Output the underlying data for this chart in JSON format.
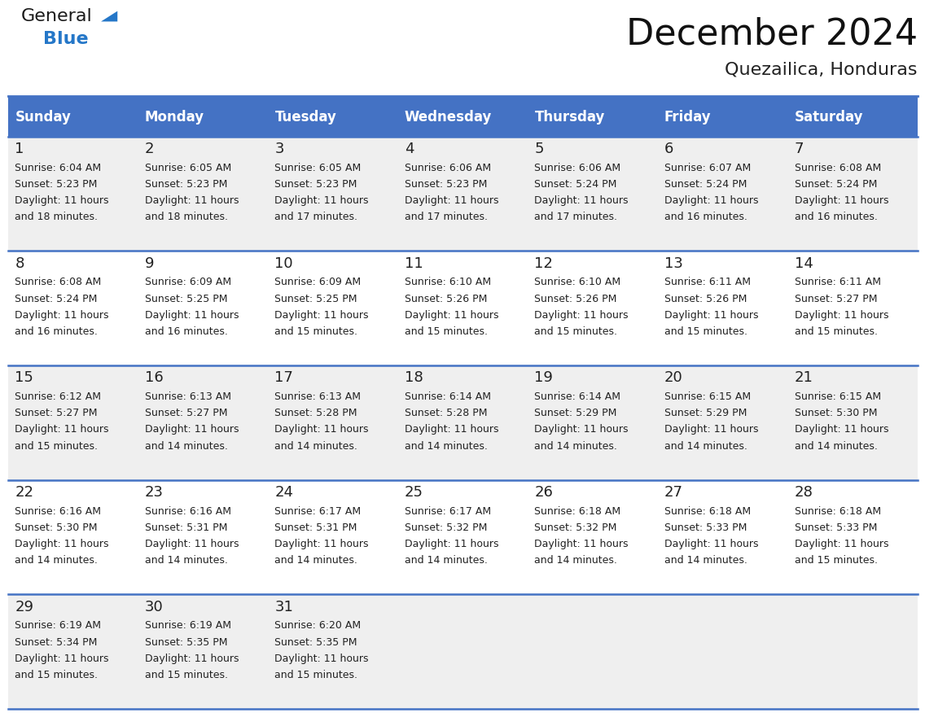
{
  "title": "December 2024",
  "subtitle": "Quezailica, Honduras",
  "header_bg_color": "#4472C4",
  "header_text_color": "#FFFFFF",
  "cell_bg_light": "#EFEFEF",
  "cell_bg_white": "#FFFFFF",
  "border_color": "#4472C4",
  "text_color": "#222222",
  "days_of_week": [
    "Sunday",
    "Monday",
    "Tuesday",
    "Wednesday",
    "Thursday",
    "Friday",
    "Saturday"
  ],
  "weeks": [
    [
      {
        "day": "1",
        "sunrise": "6:04 AM",
        "sunset": "5:23 PM",
        "daylight_line1": "Daylight: 11 hours",
        "daylight_line2": "and 18 minutes."
      },
      {
        "day": "2",
        "sunrise": "6:05 AM",
        "sunset": "5:23 PM",
        "daylight_line1": "Daylight: 11 hours",
        "daylight_line2": "and 18 minutes."
      },
      {
        "day": "3",
        "sunrise": "6:05 AM",
        "sunset": "5:23 PM",
        "daylight_line1": "Daylight: 11 hours",
        "daylight_line2": "and 17 minutes."
      },
      {
        "day": "4",
        "sunrise": "6:06 AM",
        "sunset": "5:23 PM",
        "daylight_line1": "Daylight: 11 hours",
        "daylight_line2": "and 17 minutes."
      },
      {
        "day": "5",
        "sunrise": "6:06 AM",
        "sunset": "5:24 PM",
        "daylight_line1": "Daylight: 11 hours",
        "daylight_line2": "and 17 minutes."
      },
      {
        "day": "6",
        "sunrise": "6:07 AM",
        "sunset": "5:24 PM",
        "daylight_line1": "Daylight: 11 hours",
        "daylight_line2": "and 16 minutes."
      },
      {
        "day": "7",
        "sunrise": "6:08 AM",
        "sunset": "5:24 PM",
        "daylight_line1": "Daylight: 11 hours",
        "daylight_line2": "and 16 minutes."
      }
    ],
    [
      {
        "day": "8",
        "sunrise": "6:08 AM",
        "sunset": "5:24 PM",
        "daylight_line1": "Daylight: 11 hours",
        "daylight_line2": "and 16 minutes."
      },
      {
        "day": "9",
        "sunrise": "6:09 AM",
        "sunset": "5:25 PM",
        "daylight_line1": "Daylight: 11 hours",
        "daylight_line2": "and 16 minutes."
      },
      {
        "day": "10",
        "sunrise": "6:09 AM",
        "sunset": "5:25 PM",
        "daylight_line1": "Daylight: 11 hours",
        "daylight_line2": "and 15 minutes."
      },
      {
        "day": "11",
        "sunrise": "6:10 AM",
        "sunset": "5:26 PM",
        "daylight_line1": "Daylight: 11 hours",
        "daylight_line2": "and 15 minutes."
      },
      {
        "day": "12",
        "sunrise": "6:10 AM",
        "sunset": "5:26 PM",
        "daylight_line1": "Daylight: 11 hours",
        "daylight_line2": "and 15 minutes."
      },
      {
        "day": "13",
        "sunrise": "6:11 AM",
        "sunset": "5:26 PM",
        "daylight_line1": "Daylight: 11 hours",
        "daylight_line2": "and 15 minutes."
      },
      {
        "day": "14",
        "sunrise": "6:11 AM",
        "sunset": "5:27 PM",
        "daylight_line1": "Daylight: 11 hours",
        "daylight_line2": "and 15 minutes."
      }
    ],
    [
      {
        "day": "15",
        "sunrise": "6:12 AM",
        "sunset": "5:27 PM",
        "daylight_line1": "Daylight: 11 hours",
        "daylight_line2": "and 15 minutes."
      },
      {
        "day": "16",
        "sunrise": "6:13 AM",
        "sunset": "5:27 PM",
        "daylight_line1": "Daylight: 11 hours",
        "daylight_line2": "and 14 minutes."
      },
      {
        "day": "17",
        "sunrise": "6:13 AM",
        "sunset": "5:28 PM",
        "daylight_line1": "Daylight: 11 hours",
        "daylight_line2": "and 14 minutes."
      },
      {
        "day": "18",
        "sunrise": "6:14 AM",
        "sunset": "5:28 PM",
        "daylight_line1": "Daylight: 11 hours",
        "daylight_line2": "and 14 minutes."
      },
      {
        "day": "19",
        "sunrise": "6:14 AM",
        "sunset": "5:29 PM",
        "daylight_line1": "Daylight: 11 hours",
        "daylight_line2": "and 14 minutes."
      },
      {
        "day": "20",
        "sunrise": "6:15 AM",
        "sunset": "5:29 PM",
        "daylight_line1": "Daylight: 11 hours",
        "daylight_line2": "and 14 minutes."
      },
      {
        "day": "21",
        "sunrise": "6:15 AM",
        "sunset": "5:30 PM",
        "daylight_line1": "Daylight: 11 hours",
        "daylight_line2": "and 14 minutes."
      }
    ],
    [
      {
        "day": "22",
        "sunrise": "6:16 AM",
        "sunset": "5:30 PM",
        "daylight_line1": "Daylight: 11 hours",
        "daylight_line2": "and 14 minutes."
      },
      {
        "day": "23",
        "sunrise": "6:16 AM",
        "sunset": "5:31 PM",
        "daylight_line1": "Daylight: 11 hours",
        "daylight_line2": "and 14 minutes."
      },
      {
        "day": "24",
        "sunrise": "6:17 AM",
        "sunset": "5:31 PM",
        "daylight_line1": "Daylight: 11 hours",
        "daylight_line2": "and 14 minutes."
      },
      {
        "day": "25",
        "sunrise": "6:17 AM",
        "sunset": "5:32 PM",
        "daylight_line1": "Daylight: 11 hours",
        "daylight_line2": "and 14 minutes."
      },
      {
        "day": "26",
        "sunrise": "6:18 AM",
        "sunset": "5:32 PM",
        "daylight_line1": "Daylight: 11 hours",
        "daylight_line2": "and 14 minutes."
      },
      {
        "day": "27",
        "sunrise": "6:18 AM",
        "sunset": "5:33 PM",
        "daylight_line1": "Daylight: 11 hours",
        "daylight_line2": "and 14 minutes."
      },
      {
        "day": "28",
        "sunrise": "6:18 AM",
        "sunset": "5:33 PM",
        "daylight_line1": "Daylight: 11 hours",
        "daylight_line2": "and 15 minutes."
      }
    ],
    [
      {
        "day": "29",
        "sunrise": "6:19 AM",
        "sunset": "5:34 PM",
        "daylight_line1": "Daylight: 11 hours",
        "daylight_line2": "and 15 minutes."
      },
      {
        "day": "30",
        "sunrise": "6:19 AM",
        "sunset": "5:35 PM",
        "daylight_line1": "Daylight: 11 hours",
        "daylight_line2": "and 15 minutes."
      },
      {
        "day": "31",
        "sunrise": "6:20 AM",
        "sunset": "5:35 PM",
        "daylight_line1": "Daylight: 11 hours",
        "daylight_line2": "and 15 minutes."
      },
      null,
      null,
      null,
      null
    ]
  ],
  "logo_general_color": "#1a1a1a",
  "logo_blue_color": "#2577C8",
  "logo_triangle_color": "#2577C8",
  "title_fontsize": 32,
  "subtitle_fontsize": 16,
  "header_fontsize": 12,
  "day_num_fontsize": 13,
  "cell_fontsize": 9
}
